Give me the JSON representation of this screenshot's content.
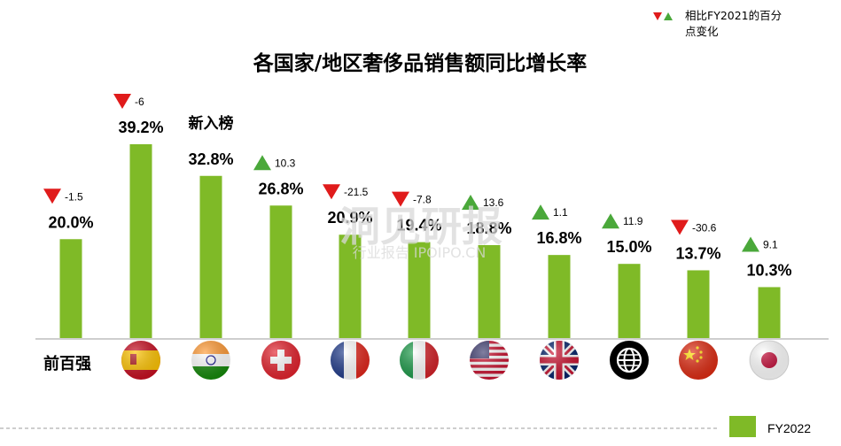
{
  "legend_top": {
    "text_line1": "相比FY2021的百分",
    "text_line2": "点变化",
    "down_color": "#e01b1b",
    "up_color": "#4aa83a"
  },
  "row_label": "前百强",
  "new_entry_label": "新入榜",
  "watermark": {
    "line1": "洞见研报",
    "line2": "行业报告 IPOIPO.CN"
  },
  "legend_bottom": {
    "label": "FY2022",
    "color": "#7fba27"
  },
  "flags": [
    "spain-flag-icon",
    "india-flag-icon",
    "switzerland-flag-icon",
    "france-flag-icon",
    "italy-flag-icon",
    "usa-flag-icon",
    "uk-flag-icon",
    "globe-icon",
    "china-flag-icon",
    "japan-flag-icon"
  ],
  "chart_data": {
    "type": "bar",
    "title": "各国家/地区奢侈品销售额同比增长率",
    "series": [
      {
        "name": "FY2022",
        "color": "#7fba27",
        "values": [
          20.0,
          39.2,
          32.8,
          26.8,
          20.9,
          19.4,
          18.8,
          16.8,
          15.0,
          13.7,
          10.3
        ]
      }
    ],
    "value_labels": [
      "20.0%",
      "39.2%",
      "32.8%",
      "26.8%",
      "20.9%",
      "19.4%",
      "18.8%",
      "16.8%",
      "15.0%",
      "13.7%",
      "10.3%"
    ],
    "change_vs_fy2021": [
      "-1.5",
      "-6",
      "",
      "10.3",
      "-21.5",
      "-7.8",
      "13.6",
      "1.1",
      "11.9",
      "-30.6",
      "9.1"
    ],
    "change_direction": [
      "down",
      "down",
      "none",
      "up",
      "down",
      "down",
      "up",
      "up",
      "up",
      "down",
      "up"
    ],
    "ylim": [
      0,
      40
    ],
    "grid": false,
    "legend_position": "bottom-right"
  }
}
